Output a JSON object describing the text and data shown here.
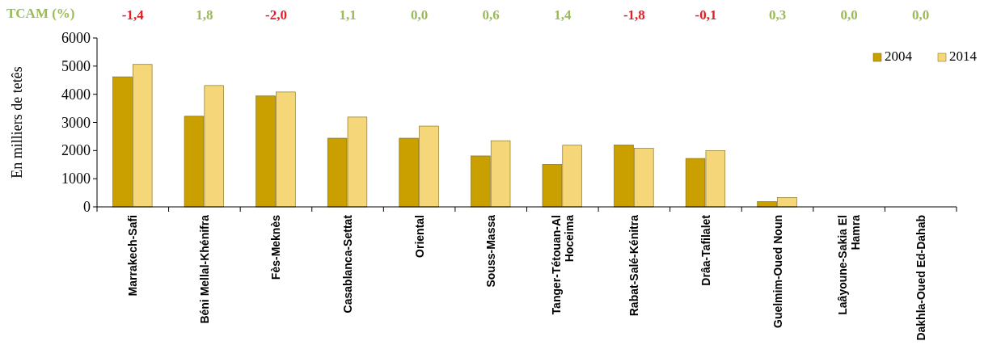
{
  "chart_data": {
    "type": "bar",
    "ylabel": "En milliers de tetês",
    "categories": [
      "Marrakech-Safi",
      "Béni Mellal-Khénifra",
      "Fès-Meknès",
      "Casablanca-Settat",
      "Oriental",
      "Souss-Massa",
      "Tanger-Tétouan-Al Hoceima",
      "Rabat-Salé-Kénitra",
      "Drâa-Tafilalet",
      "Guelmim-Oued Noun",
      "Laâyoune-Sakia El Hamra",
      "Dakhla-Oued Ed-Dahab"
    ],
    "series": [
      {
        "name": "2004",
        "color": "#c9a000",
        "values": [
          4620,
          3220,
          3940,
          2440,
          2440,
          1810,
          1510,
          2200,
          1720,
          190,
          0,
          0
        ]
      },
      {
        "name": "2014",
        "color": "#f5d77a",
        "values": [
          5060,
          4310,
          4080,
          3190,
          2870,
          2350,
          2190,
          2080,
          2000,
          330,
          0,
          0
        ]
      }
    ],
    "ylim": [
      0,
      6000
    ],
    "yticks": [
      0,
      1000,
      2000,
      3000,
      4000,
      5000,
      6000
    ],
    "legend": "top right",
    "annotations": [
      "TCAM (%)",
      "-1,4",
      "1,8",
      "-2,0",
      "1,1",
      "0,0",
      "0,6",
      "1,4",
      "-1,8",
      "-0,1",
      "0,3",
      "0,0",
      "0,0"
    ]
  }
}
